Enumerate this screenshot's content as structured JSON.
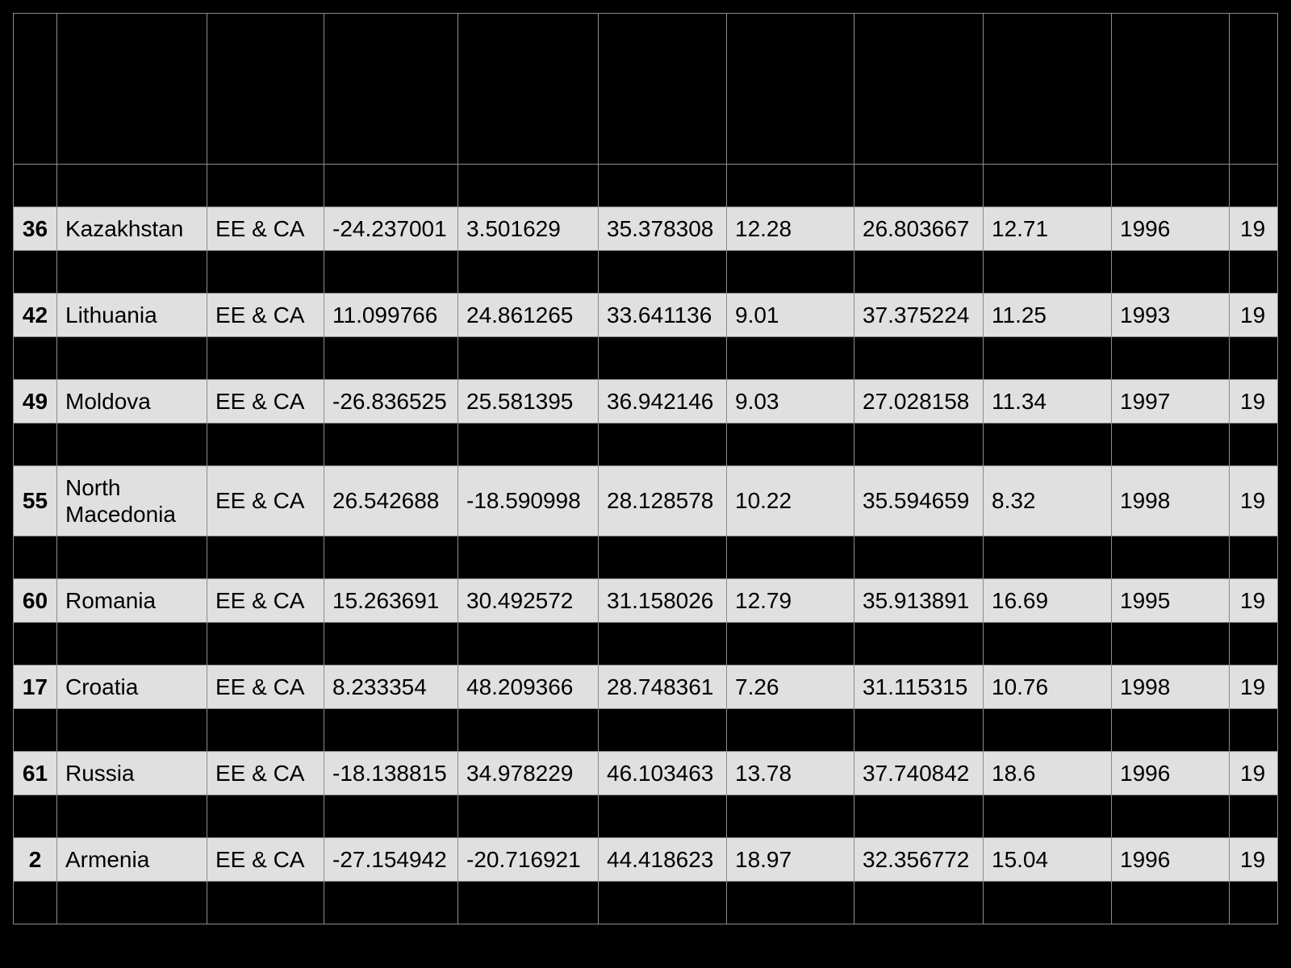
{
  "table": {
    "rows": [
      {
        "idx": "36",
        "country": "Kazakhstan",
        "region": "EE & CA",
        "c1": "-24.237001",
        "c2": "3.501629",
        "c3": "35.378308",
        "c4": "12.28",
        "c5": "26.803667",
        "c6": "12.71",
        "c7": "1996",
        "c8": "19"
      },
      {
        "idx": "42",
        "country": "Lithuania",
        "region": "EE & CA",
        "c1": "11.099766",
        "c2": "24.861265",
        "c3": "33.641136",
        "c4": "9.01",
        "c5": "37.375224",
        "c6": "11.25",
        "c7": "1993",
        "c8": "19"
      },
      {
        "idx": "49",
        "country": "Moldova",
        "region": "EE & CA",
        "c1": "-26.836525",
        "c2": "25.581395",
        "c3": "36.942146",
        "c4": "9.03",
        "c5": "27.028158",
        "c6": "11.34",
        "c7": "1997",
        "c8": "19"
      },
      {
        "idx": "55",
        "country": "North Macedonia",
        "region": "EE & CA",
        "c1": "26.542688",
        "c2": "-18.590998",
        "c3": "28.128578",
        "c4": "10.22",
        "c5": "35.594659",
        "c6": "8.32",
        "c7": "1998",
        "c8": "19"
      },
      {
        "idx": "60",
        "country": "Romania",
        "region": "EE & CA",
        "c1": "15.263691",
        "c2": "30.492572",
        "c3": "31.158026",
        "c4": "12.79",
        "c5": "35.913891",
        "c6": "16.69",
        "c7": "1995",
        "c8": "19"
      },
      {
        "idx": "17",
        "country": "Croatia",
        "region": "EE & CA",
        "c1": "8.233354",
        "c2": "48.209366",
        "c3": "28.748361",
        "c4": "7.26",
        "c5": "31.115315",
        "c6": "10.76",
        "c7": "1998",
        "c8": "19"
      },
      {
        "idx": "61",
        "country": "Russia",
        "region": "EE & CA",
        "c1": "-18.138815",
        "c2": "34.978229",
        "c3": "46.103463",
        "c4": "13.78",
        "c5": "37.740842",
        "c6": "18.6",
        "c7": "1996",
        "c8": "19"
      },
      {
        "idx": "2",
        "country": "Armenia",
        "region": "EE & CA",
        "c1": "-27.154942",
        "c2": "-20.716921",
        "c3": "44.418623",
        "c4": "18.97",
        "c5": "32.356772",
        "c6": "15.04",
        "c7": "1996",
        "c8": "19"
      }
    ]
  }
}
